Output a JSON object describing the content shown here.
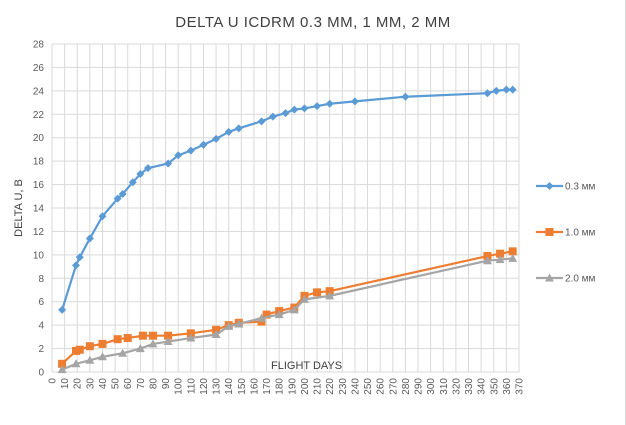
{
  "chart_data": {
    "type": "line",
    "title": "DELTA U ICDRM 0.3 MM, 1 MM, 2 MM",
    "xlabel": "FLIGHT DAYS",
    "ylabel": "DELTA U, B",
    "xlim": [
      0,
      370
    ],
    "ylim": [
      0,
      28
    ],
    "xticks": [
      0,
      10,
      20,
      30,
      40,
      50,
      60,
      70,
      80,
      90,
      100,
      110,
      120,
      130,
      140,
      150,
      160,
      170,
      180,
      190,
      200,
      210,
      220,
      230,
      240,
      250,
      260,
      270,
      280,
      290,
      300,
      310,
      320,
      330,
      340,
      350,
      360,
      370
    ],
    "yticks": [
      0,
      2,
      4,
      6,
      8,
      10,
      12,
      14,
      16,
      18,
      20,
      22,
      24,
      26,
      28
    ],
    "grid": true,
    "legend_position": "right",
    "series": [
      {
        "name": "0.3 мм",
        "color": "#5B9BD5",
        "marker": "diamond",
        "x": [
          8,
          19,
          22,
          30,
          40,
          52,
          56,
          64,
          70,
          76,
          92,
          100,
          110,
          120,
          130,
          140,
          148,
          166,
          175,
          185,
          192,
          200,
          210,
          220,
          240,
          280,
          345,
          352,
          360,
          365
        ],
        "y": [
          5.3,
          9.1,
          9.8,
          11.4,
          13.3,
          14.8,
          15.2,
          16.2,
          16.9,
          17.4,
          17.8,
          18.5,
          18.9,
          19.4,
          19.9,
          20.5,
          20.8,
          21.4,
          21.8,
          22.1,
          22.4,
          22.5,
          22.7,
          22.9,
          23.1,
          23.5,
          23.8,
          24.0,
          24.1,
          24.1
        ]
      },
      {
        "name": "1.0 мм",
        "color": "#ED7D31",
        "marker": "square",
        "x": [
          8,
          19,
          22,
          30,
          40,
          52,
          60,
          72,
          80,
          92,
          110,
          130,
          140,
          148,
          166,
          170,
          180,
          192,
          200,
          210,
          220,
          345,
          355,
          365
        ],
        "y": [
          0.7,
          1.8,
          1.9,
          2.2,
          2.4,
          2.8,
          2.9,
          3.1,
          3.1,
          3.1,
          3.3,
          3.6,
          4.0,
          4.2,
          4.3,
          4.9,
          5.2,
          5.5,
          6.5,
          6.8,
          6.9,
          9.9,
          10.1,
          10.3
        ]
      },
      {
        "name": "2.0 мм",
        "color": "#A5A5A5",
        "marker": "triangle",
        "x": [
          8,
          19,
          30,
          40,
          56,
          70,
          80,
          92,
          110,
          130,
          140,
          148,
          166,
          180,
          192,
          200,
          220,
          345,
          355,
          365
        ],
        "y": [
          0.2,
          0.7,
          1.0,
          1.3,
          1.6,
          2.0,
          2.4,
          2.6,
          2.9,
          3.2,
          3.9,
          4.1,
          4.6,
          4.9,
          5.3,
          6.2,
          6.5,
          9.5,
          9.6,
          9.7
        ]
      }
    ]
  }
}
